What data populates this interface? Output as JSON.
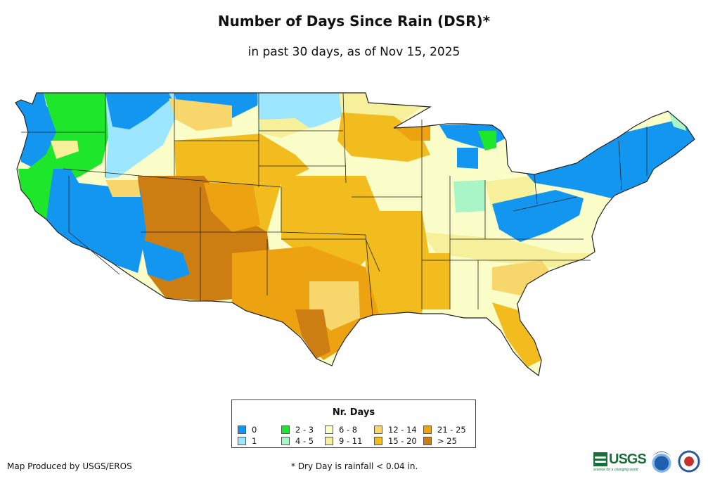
{
  "header": {
    "title": "Number of Days Since Rain (DSR)*",
    "subtitle": "in past 30 days, as of Nov 15, 2025"
  },
  "legend": {
    "title": "Nr. Days",
    "items": [
      {
        "label": "0",
        "color": "#1296f0"
      },
      {
        "label": "1",
        "color": "#9ce6ff"
      },
      {
        "label": "2 - 3",
        "color": "#1ee62a"
      },
      {
        "label": "4 - 5",
        "color": "#aaf5c6"
      },
      {
        "label": "6 - 8",
        "color": "#fafdc8"
      },
      {
        "label": "9 - 11",
        "color": "#f7f09a"
      },
      {
        "label": "12 - 14",
        "color": "#f7d66c"
      },
      {
        "label": "15 - 20",
        "color": "#f2bb1e"
      },
      {
        "label": "21 - 25",
        "color": "#eda212"
      },
      {
        "label": "> 25",
        "color": "#cd7e12"
      }
    ]
  },
  "footer": {
    "credit": "Map Produced by USGS/EROS",
    "footnote": "* Dry Day is rainfall < 0.04 in.",
    "usgs_label": "USGS",
    "usgs_tagline": "science for a changing world"
  },
  "map": {
    "region": "Contiguous United States",
    "colors": {
      "c0": "#1296f0",
      "c1": "#9ce6ff",
      "c2": "#1ee62a",
      "c4": "#aaf5c6",
      "c6": "#fafdc8",
      "c9": "#f7f09a",
      "c12": "#f7d66c",
      "c15": "#f2bb1e",
      "c21": "#eda212",
      "c25": "#cd7e12",
      "border": "#222222"
    }
  }
}
